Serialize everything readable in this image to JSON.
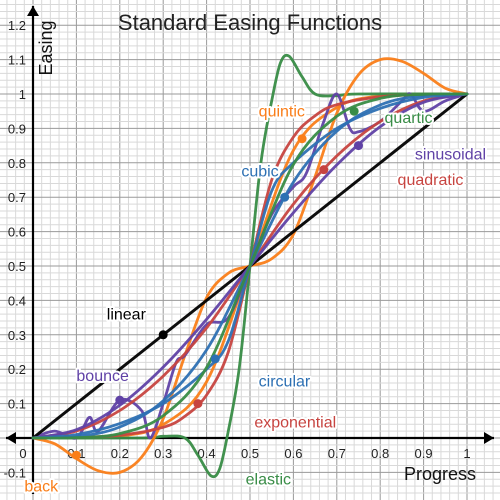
{
  "chart_data": {
    "type": "line",
    "title": "Standard Easing Functions",
    "xlabel": "Progress",
    "ylabel": "Easing",
    "xlim": [
      -0.06,
      1.08
    ],
    "ylim": [
      -0.16,
      1.28
    ],
    "x_ticks": [
      {
        "value": 0,
        "label": "0"
      },
      {
        "value": 0.1,
        "label": "0.1"
      },
      {
        "value": 0.2,
        "label": "0.2"
      },
      {
        "value": 0.3,
        "label": "0.3"
      },
      {
        "value": 0.4,
        "label": "0.4"
      },
      {
        "value": 0.5,
        "label": "0.5"
      },
      {
        "value": 0.6,
        "label": "0.6"
      },
      {
        "value": 0.7,
        "label": "0.7"
      },
      {
        "value": 0.8,
        "label": "0.8"
      },
      {
        "value": 0.9,
        "label": "0.9"
      },
      {
        "value": 1,
        "label": "1"
      }
    ],
    "y_ticks": [
      {
        "value": -0.1,
        "label": "-0.1"
      },
      {
        "value": 0.1,
        "label": "0.1"
      },
      {
        "value": 0.2,
        "label": "0.2"
      },
      {
        "value": 0.3,
        "label": "0.3"
      },
      {
        "value": 0.4,
        "label": "0.4"
      },
      {
        "value": 0.5,
        "label": "0.5"
      },
      {
        "value": 0.6,
        "label": "0.6"
      },
      {
        "value": 0.7,
        "label": "0.7"
      },
      {
        "value": 0.8,
        "label": "0.8"
      },
      {
        "value": 0.9,
        "label": "0.9"
      },
      {
        "value": 1,
        "label": "1"
      },
      {
        "value": 1.1,
        "label": "1.1"
      },
      {
        "value": 1.2,
        "label": "1.2"
      }
    ],
    "grid": true,
    "series": [
      {
        "name": "linear",
        "color": "#000000",
        "x": [
          0,
          1
        ],
        "y": [
          0,
          1
        ],
        "marker": {
          "x": 0.3,
          "y": 0.3
        }
      },
      {
        "name": "quadratic",
        "color": "#c74440",
        "x": [
          0,
          0.1,
          0.2,
          0.3,
          0.4,
          0.5,
          0.6,
          0.7,
          0.8,
          0.9,
          1
        ],
        "y": [
          0,
          0.02,
          0.08,
          0.18,
          0.32,
          0.5,
          0.68,
          0.82,
          0.92,
          0.98,
          1
        ],
        "marker": {
          "x": 0.67,
          "y": 0.78
        }
      },
      {
        "name": "cubic",
        "color": "#2d70b3",
        "x": [
          0,
          0.1,
          0.2,
          0.3,
          0.4,
          0.5,
          0.6,
          0.7,
          0.8,
          0.9,
          1
        ],
        "y": [
          0,
          0.004,
          0.032,
          0.108,
          0.256,
          0.5,
          0.744,
          0.892,
          0.968,
          0.996,
          1
        ],
        "marker": {
          "x": 0.58,
          "y": 0.7
        }
      },
      {
        "name": "quartic",
        "color": "#388c46",
        "x": [
          0,
          0.1,
          0.2,
          0.3,
          0.4,
          0.5,
          0.6,
          0.7,
          0.8,
          0.9,
          1
        ],
        "y": [
          0,
          0.0008,
          0.0128,
          0.0648,
          0.2048,
          0.5,
          0.7952,
          0.9352,
          0.9872,
          0.9992,
          1
        ],
        "marker": {
          "x": 0.74,
          "y": 0.95
        }
      },
      {
        "name": "quintic",
        "color": "#fa7e19",
        "x": [
          0,
          0.1,
          0.2,
          0.3,
          0.4,
          0.5,
          0.6,
          0.7,
          0.8,
          0.9,
          1
        ],
        "y": [
          0,
          0.0002,
          0.0051,
          0.0389,
          0.1638,
          0.5,
          0.8362,
          0.9611,
          0.9949,
          0.9998,
          1
        ],
        "marker": {
          "x": 0.62,
          "y": 0.87
        }
      },
      {
        "name": "sinusoidal",
        "color": "#6042a6",
        "x": [
          0,
          0.1,
          0.2,
          0.3,
          0.4,
          0.5,
          0.6,
          0.7,
          0.8,
          0.9,
          1
        ],
        "y": [
          0,
          0.024,
          0.095,
          0.206,
          0.345,
          0.5,
          0.655,
          0.794,
          0.905,
          0.976,
          1
        ],
        "marker": {
          "x": 0.75,
          "y": 0.85
        }
      },
      {
        "name": "circular",
        "color": "#2d70b3",
        "x": [
          0,
          0.1,
          0.2,
          0.3,
          0.4,
          0.45,
          0.5,
          0.55,
          0.6,
          0.7,
          0.8,
          0.9,
          1
        ],
        "y": [
          0,
          0.01,
          0.042,
          0.1,
          0.2,
          0.282,
          0.5,
          0.718,
          0.8,
          0.9,
          0.958,
          0.99,
          1
        ],
        "marker": {
          "x": 0.42,
          "y": 0.23
        }
      },
      {
        "name": "exponential",
        "color": "#c74440",
        "x": [
          0,
          0.1,
          0.2,
          0.3,
          0.35,
          0.4,
          0.45,
          0.5,
          0.55,
          0.6,
          0.65,
          0.7,
          0.8,
          0.9,
          1
        ],
        "y": [
          0,
          0.002,
          0.008,
          0.031,
          0.063,
          0.125,
          0.25,
          0.5,
          0.75,
          0.875,
          0.937,
          0.969,
          0.992,
          0.998,
          1
        ],
        "marker": {
          "x": 0.38,
          "y": 0.1
        }
      },
      {
        "name": "elastic",
        "color": "#388c46",
        "x": [
          0,
          0.25,
          0.3,
          0.35,
          0.38,
          0.41,
          0.43,
          0.45,
          0.475,
          0.5,
          0.525,
          0.55,
          0.57,
          0.59,
          0.62,
          0.65,
          0.7,
          0.75,
          1
        ],
        "y": [
          0,
          0.0,
          0.005,
          0.0,
          -0.05,
          -0.11,
          -0.09,
          0.02,
          0.2,
          0.5,
          0.8,
          0.98,
          1.09,
          1.11,
          1.05,
          1.0,
          0.995,
          1.0,
          1
        ],
        "marker": null
      },
      {
        "name": "back",
        "color": "#fa7e19",
        "x": [
          0,
          0.05,
          0.1,
          0.15,
          0.2,
          0.25,
          0.3,
          0.35,
          0.4,
          0.45,
          0.5,
          0.55,
          0.6,
          0.65,
          0.7,
          0.75,
          0.8,
          0.85,
          0.9,
          0.95,
          1
        ],
        "y": [
          0,
          -0.017,
          -0.06,
          -0.095,
          -0.1,
          -0.056,
          0.056,
          0.24,
          0.408,
          0.479,
          0.5,
          0.521,
          0.592,
          0.76,
          0.944,
          1.056,
          1.1,
          1.095,
          1.06,
          1.017,
          1
        ],
        "marker": {
          "x": 0.1,
          "y": -0.05
        }
      },
      {
        "name": "bounce",
        "color": "#6042a6",
        "x": [
          0,
          0.05,
          0.1,
          0.13,
          0.15,
          0.2,
          0.25,
          0.27,
          0.3,
          0.33,
          0.35,
          0.4,
          0.45,
          0.5,
          0.55,
          0.6,
          0.63,
          0.67,
          0.7,
          0.73,
          0.75,
          0.8,
          0.85,
          0.87,
          0.9,
          0.95,
          1
        ],
        "y": [
          0,
          0.02,
          0.0,
          0.06,
          0.02,
          0.11,
          0.08,
          0.0,
          0.1,
          0.22,
          0.24,
          0.33,
          0.35,
          0.5,
          0.65,
          0.73,
          0.77,
          0.92,
          1.0,
          0.9,
          0.89,
          0.92,
          0.98,
          1.0,
          0.95,
          0.98,
          1
        ],
        "marker": {
          "x": 0.2,
          "y": 0.11
        }
      }
    ],
    "labels": [
      {
        "text": "linear",
        "series": "linear",
        "x": 0.17,
        "y": 0.345
      },
      {
        "text": "quadratic",
        "series": "quadratic",
        "x": 0.84,
        "y": 0.735
      },
      {
        "text": "cubic",
        "series": "cubic",
        "x": 0.48,
        "y": 0.76
      },
      {
        "text": "quartic",
        "series": "quartic",
        "x": 0.81,
        "y": 0.915
      },
      {
        "text": "quintic",
        "series": "quintic",
        "x": 0.52,
        "y": 0.935
      },
      {
        "text": "sinusoidal",
        "series": "sinusoidal",
        "x": 0.88,
        "y": 0.81
      },
      {
        "text": "circular",
        "series": "circular",
        "x": 0.52,
        "y": 0.15
      },
      {
        "text": "exponential",
        "series": "exponential",
        "x": 0.51,
        "y": 0.03
      },
      {
        "text": "elastic",
        "series": "elastic",
        "x": 0.49,
        "y": -0.135
      },
      {
        "text": "back",
        "series": "back",
        "x": -0.02,
        "y": -0.155
      },
      {
        "text": "bounce",
        "series": "bounce",
        "x": 0.1,
        "y": 0.165
      }
    ]
  }
}
